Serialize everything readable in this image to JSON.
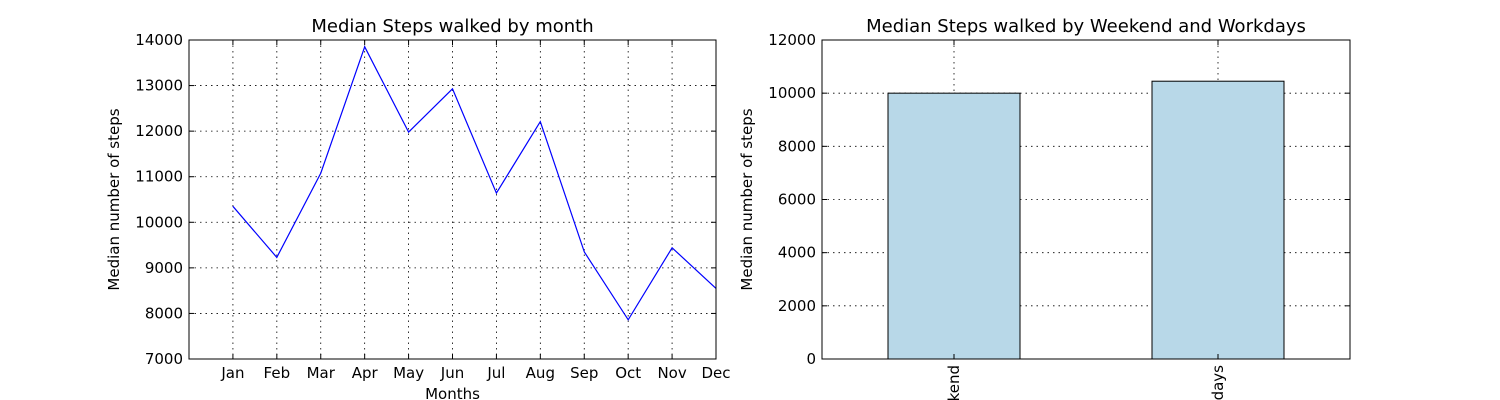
{
  "chart_data": [
    {
      "type": "line",
      "title": "Median Steps walked by month",
      "xlabel": "Months",
      "ylabel": "Median number of steps",
      "categories": [
        "Jan",
        "Feb",
        "Mar",
        "Apr",
        "May",
        "Jun",
        "Jul",
        "Aug",
        "Sep",
        "Oct",
        "Nov",
        "Dec"
      ],
      "values": [
        10350,
        9230,
        11080,
        13850,
        11980,
        12930,
        10640,
        12210,
        9350,
        7860,
        9440,
        8550
      ],
      "ylim": [
        7000,
        14000
      ],
      "yticks": [
        7000,
        8000,
        9000,
        10000,
        11000,
        12000,
        13000,
        14000
      ],
      "xlim": [
        -1,
        11
      ],
      "grid": true,
      "line_color": "#0000ff"
    },
    {
      "type": "bar",
      "title": "Median Steps walked by Weekend and Workdays",
      "xlabel": "",
      "ylabel": "Median number of steps",
      "categories": [
        "Weekend",
        "Workdays"
      ],
      "visible_category_text": [
        "kend",
        "days"
      ],
      "values": [
        10000,
        10450
      ],
      "ylim": [
        0,
        12000
      ],
      "yticks": [
        0,
        2000,
        4000,
        6000,
        8000,
        10000,
        12000
      ],
      "grid": true,
      "bar_color": "#b8d8e8"
    }
  ]
}
